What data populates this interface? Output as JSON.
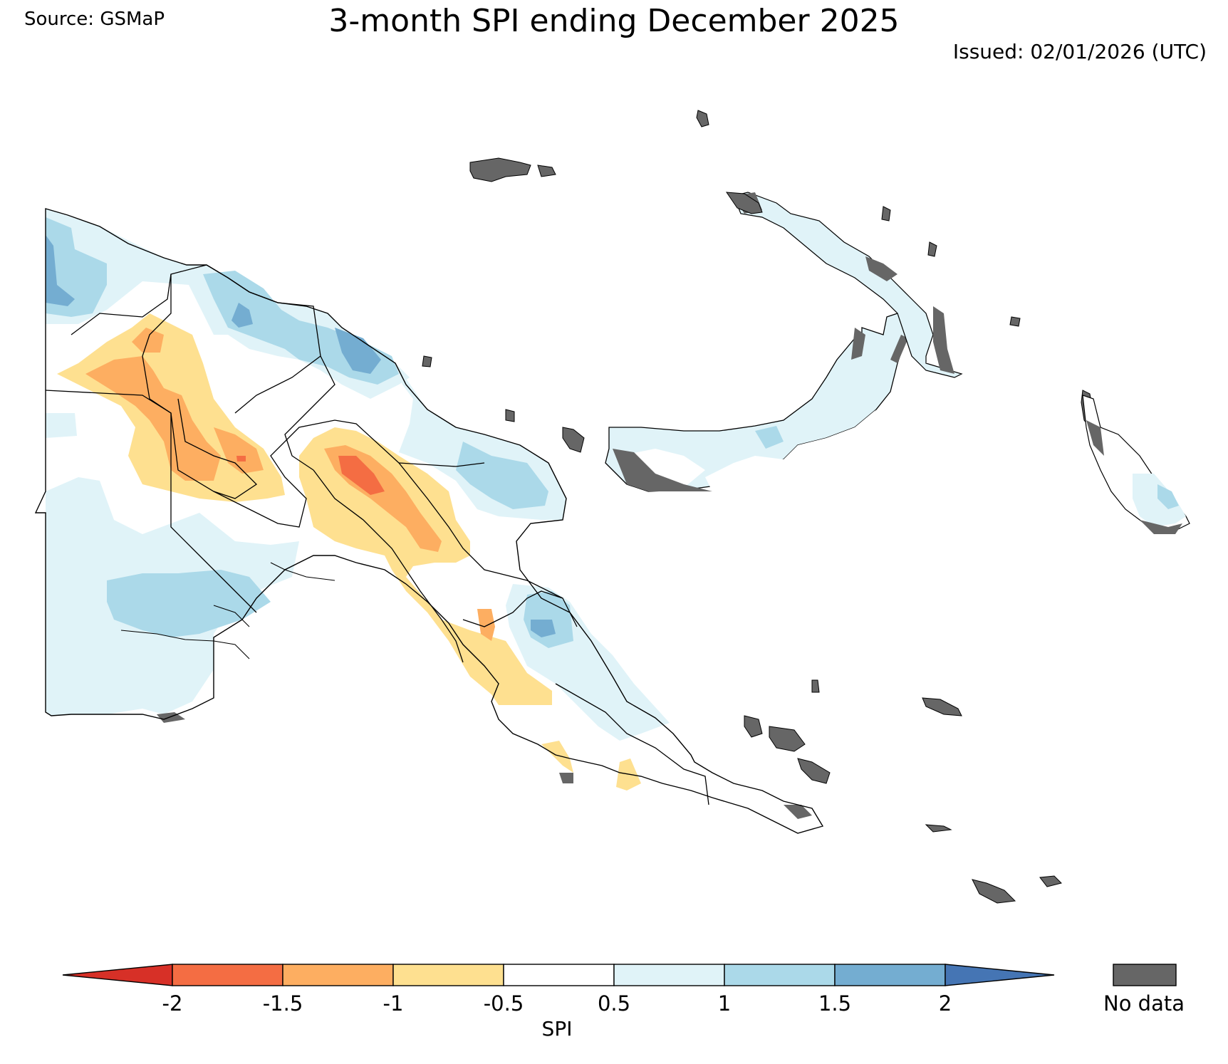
{
  "header": {
    "source": "Source: GSMaP",
    "title": "3-month SPI ending December 2025",
    "issued": "Issued: 02/01/2026 (UTC)"
  },
  "legend": {
    "label": "SPI",
    "ticks": [
      "-2",
      "-1.5",
      "-1",
      "-0.5",
      "0.5",
      "1",
      "1.5",
      "2"
    ],
    "bins": [
      {
        "range": "< -2",
        "color": "#d73027"
      },
      {
        "range": "-2 to -1.5",
        "color": "#f46d43"
      },
      {
        "range": "-1.5 to -1",
        "color": "#fdae61"
      },
      {
        "range": "-1 to -0.5",
        "color": "#fee090"
      },
      {
        "range": "-0.5 to 0.5",
        "color": "#ffffff"
      },
      {
        "range": "0.5 to 1",
        "color": "#e0f3f8"
      },
      {
        "range": "1 to 1.5",
        "color": "#abd9e9"
      },
      {
        "range": "1.5 to 2",
        "color": "#74add1"
      },
      {
        "range": "> 2",
        "color": "#4575b4"
      }
    ],
    "nodata_label": "No data",
    "nodata_color": "#666666"
  }
}
